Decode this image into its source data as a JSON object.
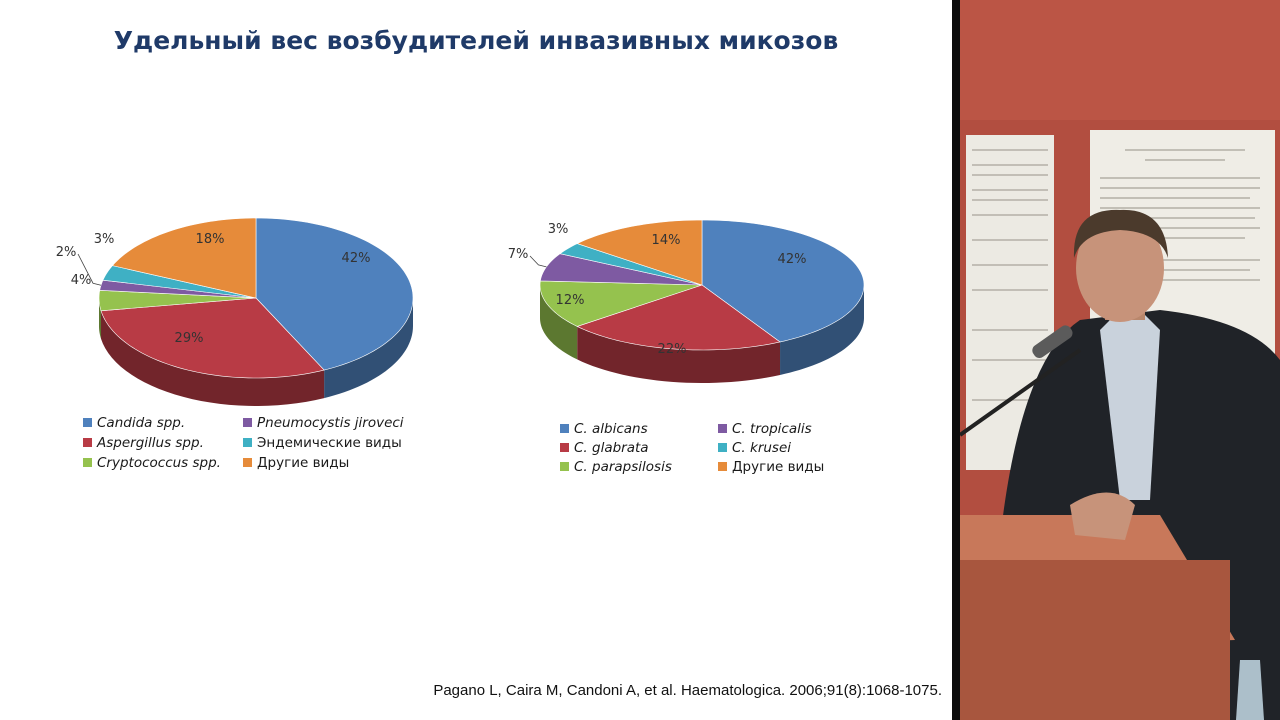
{
  "slide": {
    "title": "Удельный вес возбудителей инвазивных микозов",
    "citation": "Pagano L, Caira M, Candoni A, et al. Haematologica. 2006;91(8):1068-1075."
  },
  "colors": {
    "blue": "#4f81bd",
    "red": "#b83b45",
    "purple": "#7e5aa2",
    "teal": "#3fb0c4",
    "green": "#95c24e",
    "orange": "#e68b3a"
  },
  "chart_data": [
    {
      "type": "pie",
      "slices": [
        {
          "name": "Candida spp.",
          "value": 42,
          "label": "42%",
          "color": "#4f81bd"
        },
        {
          "name": "Aspergillus spp.",
          "value": 29,
          "label": "29%",
          "color": "#b83b45"
        },
        {
          "name": "Cryptococcus spp.",
          "value": 4,
          "label": "4%",
          "color": "#95c24e"
        },
        {
          "name": "Pneumocystis jiroveci",
          "value": 2,
          "label": "2%",
          "color": "#7e5aa2"
        },
        {
          "name": "Эндемические виды",
          "value": 3,
          "label": "3%",
          "color": "#3fb0c4"
        },
        {
          "name": "Другие виды",
          "value": 18,
          "label": "18%",
          "color": "#e68b3a"
        }
      ],
      "legend": [
        [
          "Candida spp.",
          "Pneumocystis jiroveci"
        ],
        [
          "Aspergillus spp.",
          "Эндемические виды"
        ],
        [
          "Cryptococcus spp.",
          "Другие виды"
        ]
      ]
    },
    {
      "type": "pie",
      "slices": [
        {
          "name": "C. albicans",
          "value": 42,
          "label": "42%",
          "color": "#4f81bd"
        },
        {
          "name": "C. glabrata",
          "value": 22,
          "label": "22%",
          "color": "#b83b45"
        },
        {
          "name": "C. parapsilosis",
          "value": 12,
          "label": "12%",
          "color": "#95c24e"
        },
        {
          "name": "C. tropicalis",
          "value": 7,
          "label": "7%",
          "color": "#7e5aa2"
        },
        {
          "name": "C. krusei",
          "value": 3,
          "label": "3%",
          "color": "#3fb0c4"
        },
        {
          "name": "Другие виды",
          "value": 14,
          "label": "14%",
          "color": "#e68b3a"
        }
      ],
      "legend": [
        [
          "C. albicans",
          "C. tropicalis"
        ],
        [
          "C. glabrata",
          "C. krusei"
        ],
        [
          "C. parapsilosis",
          "Другие виды"
        ]
      ]
    }
  ]
}
